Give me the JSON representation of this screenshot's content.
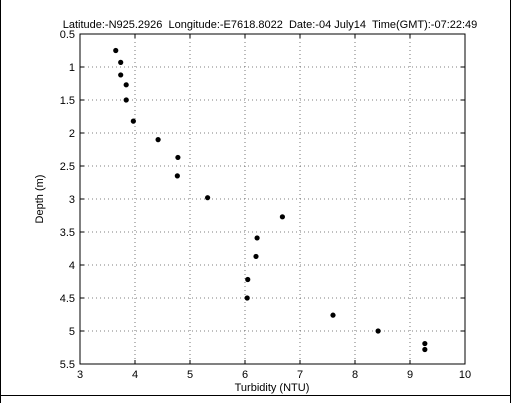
{
  "chart_data": {
    "type": "scatter",
    "title": "Latitude:-N925.2926  Longitude:-E7618.8022  Date:-04 July14  Time(GMT):-07:22:49",
    "xlabel": "Turbidity (NTU)",
    "ylabel": "Depth (m)",
    "xlim": [
      3,
      10
    ],
    "ylim": [
      0.5,
      5.5
    ],
    "y_inverted": true,
    "grid": true,
    "legend": "none",
    "x_ticks": [
      "3",
      "4",
      "5",
      "6",
      "7",
      "8",
      "9",
      "10"
    ],
    "y_ticks": [
      "0.5",
      "1",
      "1.5",
      "2",
      "2.5",
      "3",
      "3.5",
      "4",
      "4.5",
      "5",
      "5.5"
    ],
    "marker_color": "#000000",
    "series": [
      {
        "points": [
          {
            "x": 3.65,
            "y": 0.75
          },
          {
            "x": 3.74,
            "y": 0.93
          },
          {
            "x": 3.74,
            "y": 1.12
          },
          {
            "x": 3.84,
            "y": 1.27
          },
          {
            "x": 3.84,
            "y": 1.5
          },
          {
            "x": 3.97,
            "y": 1.82
          },
          {
            "x": 4.42,
            "y": 2.1
          },
          {
            "x": 4.78,
            "y": 2.37
          },
          {
            "x": 4.77,
            "y": 2.65
          },
          {
            "x": 5.32,
            "y": 2.98
          },
          {
            "x": 6.68,
            "y": 3.27
          },
          {
            "x": 6.22,
            "y": 3.59
          },
          {
            "x": 6.2,
            "y": 3.87
          },
          {
            "x": 6.05,
            "y": 4.22
          },
          {
            "x": 6.04,
            "y": 4.5
          },
          {
            "x": 7.6,
            "y": 4.76
          },
          {
            "x": 8.42,
            "y": 5.0
          },
          {
            "x": 9.27,
            "y": 5.19
          },
          {
            "x": 9.27,
            "y": 5.28
          }
        ]
      }
    ]
  }
}
